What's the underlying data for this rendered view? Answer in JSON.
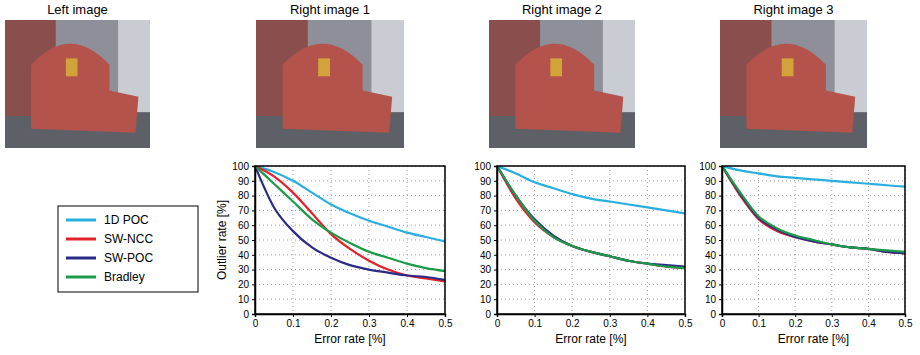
{
  "images": [
    {
      "title": "Left image"
    },
    {
      "title": "Right image 1"
    },
    {
      "title": "Right image 2"
    },
    {
      "title": "Right image 3"
    }
  ],
  "chart_data": [
    {
      "type": "line",
      "x_label": "Error rate [%]",
      "y_label": "Outlier rate [%]",
      "x": [
        0,
        0.05,
        0.1,
        0.15,
        0.2,
        0.25,
        0.3,
        0.35,
        0.4,
        0.45,
        0.5
      ],
      "series": [
        {
          "name": "1D POC",
          "color": "#29aee0",
          "values": [
            100,
            96,
            90,
            82,
            74,
            68,
            63,
            59,
            55,
            52,
            49
          ]
        },
        {
          "name": "SW-NCC",
          "color": "#e3212b",
          "values": [
            100,
            93,
            82,
            68,
            54,
            44,
            36,
            30,
            26,
            24,
            22
          ]
        },
        {
          "name": "SW-POC",
          "color": "#2b2b86",
          "values": [
            100,
            72,
            56,
            45,
            38,
            33,
            30,
            28,
            26,
            25,
            23
          ]
        },
        {
          "name": "Bradley",
          "color": "#1c9a4a",
          "values": [
            100,
            88,
            76,
            64,
            55,
            48,
            42,
            38,
            34,
            31,
            29
          ]
        }
      ],
      "xlim": [
        0,
        0.5
      ],
      "ylim": [
        0,
        100
      ],
      "xticks": [
        0,
        0.1,
        0.2,
        0.3,
        0.4,
        0.5
      ],
      "yticks": [
        0,
        10,
        20,
        30,
        40,
        50,
        60,
        70,
        80,
        90,
        100
      ],
      "grid": true,
      "legend": "left"
    },
    {
      "type": "line",
      "x_label": "Error rate [%]",
      "x": [
        0,
        0.05,
        0.1,
        0.15,
        0.2,
        0.25,
        0.3,
        0.35,
        0.4,
        0.45,
        0.5
      ],
      "series": [
        {
          "name": "1D POC",
          "color": "#29aee0",
          "values": [
            100,
            95,
            89,
            85,
            81,
            78,
            76,
            74,
            72,
            70,
            68
          ]
        },
        {
          "name": "SW-NCC",
          "color": "#e3212b",
          "values": [
            100,
            78,
            62,
            52,
            46,
            42,
            39,
            36,
            34,
            32,
            31
          ]
        },
        {
          "name": "SW-POC",
          "color": "#2b2b86",
          "values": [
            100,
            80,
            64,
            53,
            46,
            42,
            39,
            36,
            34,
            33,
            32
          ]
        },
        {
          "name": "Bradley",
          "color": "#1c9a4a",
          "values": [
            100,
            80,
            63,
            52,
            46,
            42,
            39,
            36,
            34,
            32,
            31
          ]
        }
      ],
      "xlim": [
        0,
        0.5
      ],
      "ylim": [
        0,
        100
      ],
      "xticks": [
        0,
        0.1,
        0.2,
        0.3,
        0.4,
        0.5
      ],
      "yticks": [
        0,
        10,
        20,
        30,
        40,
        50,
        60,
        70,
        80,
        90,
        100
      ],
      "grid": true
    },
    {
      "type": "line",
      "x_label": "Error rate [%]",
      "x": [
        0,
        0.05,
        0.1,
        0.15,
        0.2,
        0.25,
        0.3,
        0.35,
        0.4,
        0.45,
        0.5
      ],
      "series": [
        {
          "name": "1D POC",
          "color": "#29aee0",
          "values": [
            100,
            97,
            95,
            93,
            92,
            91,
            90,
            89,
            88,
            87,
            86
          ]
        },
        {
          "name": "SW-NCC",
          "color": "#e3212b",
          "values": [
            100,
            80,
            64,
            56,
            52,
            49,
            47,
            45,
            44,
            42,
            41
          ]
        },
        {
          "name": "SW-POC",
          "color": "#2b2b86",
          "values": [
            100,
            81,
            65,
            57,
            52,
            49,
            47,
            45,
            44,
            42,
            41
          ]
        },
        {
          "name": "Bradley",
          "color": "#1c9a4a",
          "values": [
            100,
            82,
            66,
            58,
            53,
            50,
            47,
            45,
            44,
            43,
            42
          ]
        }
      ],
      "xlim": [
        0,
        0.5
      ],
      "ylim": [
        0,
        100
      ],
      "xticks": [
        0,
        0.1,
        0.2,
        0.3,
        0.4,
        0.5
      ],
      "yticks": [
        0,
        10,
        20,
        30,
        40,
        50,
        60,
        70,
        80,
        90,
        100
      ],
      "grid": true
    }
  ]
}
